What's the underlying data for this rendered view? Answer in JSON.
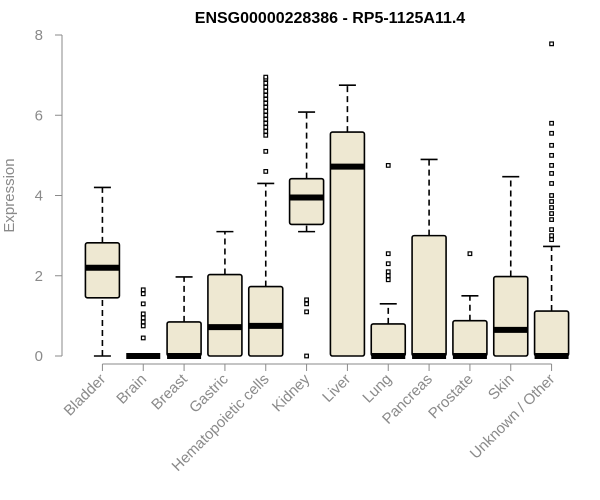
{
  "chart_data": {
    "type": "boxplot",
    "title": "ENSG00000228386 - RP5-1125A11.4",
    "xlabel": "",
    "ylabel": "Expression",
    "ylim": [
      0,
      8
    ],
    "yticks": [
      0,
      2,
      4,
      6,
      8
    ],
    "categories": [
      "Bladder",
      "Brain",
      "Breast",
      "Gastric",
      "Hematopoietic cells",
      "Kidney",
      "Liver",
      "Lung",
      "Pancreas",
      "Prostate",
      "Skin",
      "Unknown / Other"
    ],
    "colors": {
      "box_fill": "#EEE8D2",
      "axis_text": "#8a8a8a",
      "stroke": "#000000"
    },
    "boxes": [
      {
        "category": "Bladder",
        "min": 0.0,
        "q1": 1.45,
        "median": 2.2,
        "q3": 2.82,
        "max": 4.2,
        "outliers": []
      },
      {
        "category": "Brain",
        "min": 0.0,
        "q1": 0.0,
        "median": 0.0,
        "q3": 0.0,
        "max": 0.0,
        "outliers": [
          0.45,
          0.75,
          0.85,
          0.95,
          1.05,
          1.3,
          1.55,
          1.65
        ]
      },
      {
        "category": "Breast",
        "min": 0.0,
        "q1": 0.0,
        "median": 0.0,
        "q3": 0.85,
        "max": 1.97,
        "outliers": []
      },
      {
        "category": "Gastric",
        "min": 0.0,
        "q1": 0.0,
        "median": 0.72,
        "q3": 2.03,
        "max": 3.1,
        "outliers": []
      },
      {
        "category": "Hematopoietic cells",
        "min": 0.0,
        "q1": 0.0,
        "median": 0.75,
        "q3": 1.73,
        "max": 4.3,
        "outliers": [
          4.6,
          5.1,
          5.5,
          5.6,
          5.7,
          5.8,
          5.9,
          6.0,
          6.1,
          6.2,
          6.3,
          6.4,
          6.5,
          6.6,
          6.7,
          6.8,
          6.9,
          6.95
        ]
      },
      {
        "category": "Kidney",
        "min": 3.1,
        "q1": 3.28,
        "median": 3.95,
        "q3": 4.42,
        "max": 6.08,
        "outliers": [
          0.0,
          1.1,
          1.3,
          1.4
        ]
      },
      {
        "category": "Liver",
        "min": 0.0,
        "q1": 0.0,
        "median": 4.72,
        "q3": 5.58,
        "max": 6.75,
        "outliers": []
      },
      {
        "category": "Lung",
        "min": 0.0,
        "q1": 0.0,
        "median": 0.0,
        "q3": 0.8,
        "max": 1.3,
        "outliers": [
          1.9,
          2.0,
          2.1,
          2.3,
          2.55,
          4.75
        ]
      },
      {
        "category": "Pancreas",
        "min": 0.0,
        "q1": 0.0,
        "median": 0.0,
        "q3": 3.0,
        "max": 4.9,
        "outliers": []
      },
      {
        "category": "Prostate",
        "min": 0.0,
        "q1": 0.0,
        "median": 0.0,
        "q3": 0.88,
        "max": 1.5,
        "outliers": [
          2.55
        ]
      },
      {
        "category": "Skin",
        "min": 0.0,
        "q1": 0.0,
        "median": 0.65,
        "q3": 1.98,
        "max": 4.47,
        "outliers": []
      },
      {
        "category": "Unknown / Other",
        "min": 0.0,
        "q1": 0.0,
        "median": 0.0,
        "q3": 1.12,
        "max": 2.73,
        "outliers": [
          2.9,
          3.0,
          3.15,
          3.4,
          3.55,
          3.7,
          3.85,
          4.0,
          4.3,
          4.55,
          4.75,
          5.0,
          5.25,
          5.55,
          5.8,
          7.78
        ]
      }
    ]
  }
}
